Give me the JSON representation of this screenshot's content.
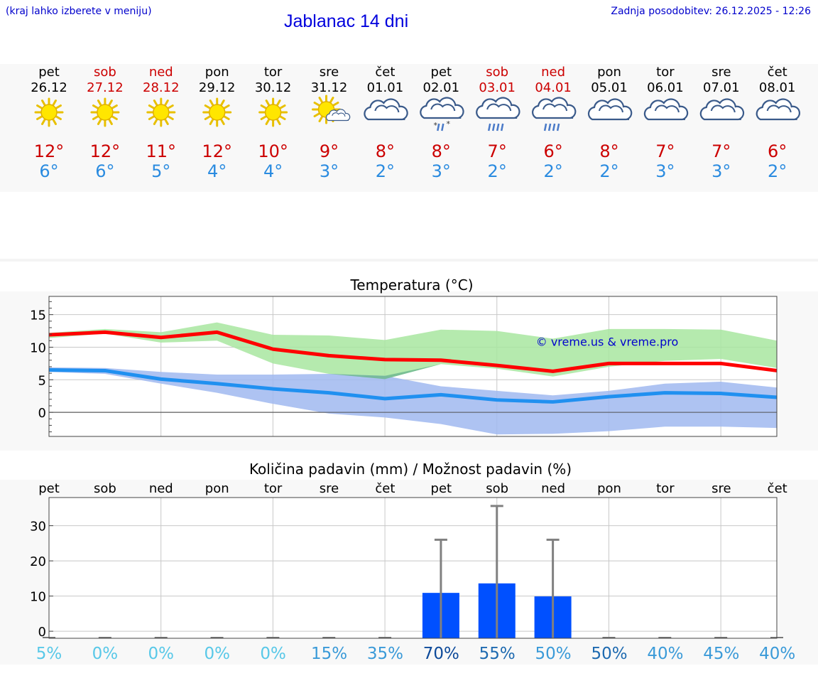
{
  "header": {
    "hint": "(kraj lahko izberete v meniju)",
    "title": "Jablanac 14 dni",
    "updated": "Zadnja posodobitev: 26.12.2025 - 12:26"
  },
  "days": [
    {
      "dow": "pet",
      "date": "26.12",
      "weekend": false,
      "icon": "sun-icon",
      "hi": "12°",
      "lo": "6°"
    },
    {
      "dow": "sob",
      "date": "27.12",
      "weekend": true,
      "icon": "sun-icon",
      "hi": "12°",
      "lo": "6°"
    },
    {
      "dow": "ned",
      "date": "28.12",
      "weekend": true,
      "icon": "sun-icon",
      "hi": "11°",
      "lo": "5°"
    },
    {
      "dow": "pon",
      "date": "29.12",
      "weekend": false,
      "icon": "sun-icon",
      "hi": "12°",
      "lo": "4°"
    },
    {
      "dow": "tor",
      "date": "30.12",
      "weekend": false,
      "icon": "sun-icon",
      "hi": "10°",
      "lo": "4°"
    },
    {
      "dow": "sre",
      "date": "31.12",
      "weekend": false,
      "icon": "sun-cloud-icon",
      "hi": "9°",
      "lo": "3°"
    },
    {
      "dow": "čet",
      "date": "01.01",
      "weekend": false,
      "icon": "cloud-icon",
      "hi": "8°",
      "lo": "2°"
    },
    {
      "dow": "pet",
      "date": "02.01",
      "weekend": false,
      "icon": "cloud-snow-rain-icon",
      "hi": "8°",
      "lo": "3°"
    },
    {
      "dow": "sob",
      "date": "03.01",
      "weekend": true,
      "icon": "cloud-rain-icon",
      "hi": "7°",
      "lo": "2°"
    },
    {
      "dow": "ned",
      "date": "04.01",
      "weekend": true,
      "icon": "cloud-rain-icon",
      "hi": "6°",
      "lo": "2°"
    },
    {
      "dow": "pon",
      "date": "05.01",
      "weekend": false,
      "icon": "cloud-icon",
      "hi": "8°",
      "lo": "2°"
    },
    {
      "dow": "tor",
      "date": "06.01",
      "weekend": false,
      "icon": "cloud-icon",
      "hi": "7°",
      "lo": "3°"
    },
    {
      "dow": "sre",
      "date": "07.01",
      "weekend": false,
      "icon": "cloud-icon",
      "hi": "7°",
      "lo": "3°"
    },
    {
      "dow": "čet",
      "date": "08.01",
      "weekend": false,
      "icon": "cloud-icon",
      "hi": "6°",
      "lo": "2°"
    }
  ],
  "colors": {
    "weekday": "#000000",
    "weekend": "#cc0000",
    "hi": "#cc0000",
    "lo": "#2a8be0",
    "hiLine": "#ff0000",
    "loLine": "#2090f0",
    "hiBand": "#a8e6a0",
    "loBand": "#a0b8f0",
    "bar": "#0050ff",
    "whisker": "#808080",
    "watermark": "#0000cc"
  },
  "chart_data": [
    {
      "type": "line",
      "title": "Temperatura (°C)",
      "watermark": "© vreme.us & vreme.pro",
      "ylim": [
        -3.7,
        17.8
      ],
      "yticks": [
        0,
        5,
        10,
        15
      ],
      "ytick_labels": [
        "0",
        "5",
        "10",
        "15"
      ],
      "x": [
        0,
        1,
        2,
        3,
        4,
        5,
        6,
        7,
        8,
        9,
        10,
        11,
        12,
        13
      ],
      "series": [
        {
          "name": "max",
          "values": [
            11.9,
            12.3,
            11.5,
            12.3,
            9.7,
            8.7,
            8.1,
            8.0,
            7.2,
            6.3,
            7.5,
            7.5,
            7.5,
            6.4
          ]
        },
        {
          "name": "min",
          "values": [
            6.5,
            6.4,
            5.1,
            4.4,
            3.6,
            3.0,
            2.1,
            2.7,
            1.9,
            1.6,
            2.4,
            3.0,
            2.9,
            2.3
          ]
        }
      ],
      "max_band": {
        "upper": [
          12.2,
          12.8,
          12.3,
          13.8,
          11.9,
          11.8,
          11.1,
          12.7,
          12.5,
          11.3,
          12.8,
          12.8,
          12.7,
          11.0
        ],
        "lower": [
          11.4,
          12.1,
          10.7,
          11.0,
          7.5,
          5.9,
          5.1,
          7.4,
          6.7,
          5.5,
          7.0,
          7.9,
          8.2,
          6.8
        ]
      },
      "min_band": {
        "upper": [
          6.9,
          6.8,
          6.2,
          5.8,
          5.8,
          5.9,
          5.6,
          4.0,
          3.3,
          2.6,
          3.3,
          4.4,
          4.7,
          3.8
        ],
        "lower": [
          6.2,
          5.9,
          4.4,
          3.0,
          1.3,
          -0.2,
          -0.8,
          -1.8,
          -3.4,
          -3.3,
          -2.9,
          -2.2,
          -2.2,
          -2.4
        ]
      }
    },
    {
      "type": "bar",
      "title": "Količina padavin (mm) / Možnost padavin (%)",
      "categories": [
        "pet",
        "sob",
        "ned",
        "pon",
        "tor",
        "sre",
        "čet",
        "pet",
        "sob",
        "ned",
        "pon",
        "tor",
        "sre",
        "čet"
      ],
      "ylim": [
        -2,
        38
      ],
      "yticks": [
        0,
        10,
        20,
        30
      ],
      "ytick_labels": [
        "0",
        "10",
        "20",
        "30"
      ],
      "values": [
        0,
        0,
        0,
        0,
        0,
        0,
        0,
        10.9,
        13.6,
        9.9,
        0,
        0,
        0,
        0
      ],
      "whisker_high": [
        0,
        0,
        0,
        0,
        0,
        0,
        0,
        26,
        35.6,
        26,
        0,
        0,
        0,
        0
      ],
      "probability": [
        "5%",
        "0%",
        "0%",
        "0%",
        "0%",
        "15%",
        "35%",
        "70%",
        "55%",
        "50%",
        "50%",
        "40%",
        "45%",
        "40%"
      ],
      "probability_values": [
        5,
        0,
        0,
        0,
        0,
        15,
        35,
        70,
        55,
        50,
        50,
        40,
        45,
        40
      ]
    }
  ]
}
